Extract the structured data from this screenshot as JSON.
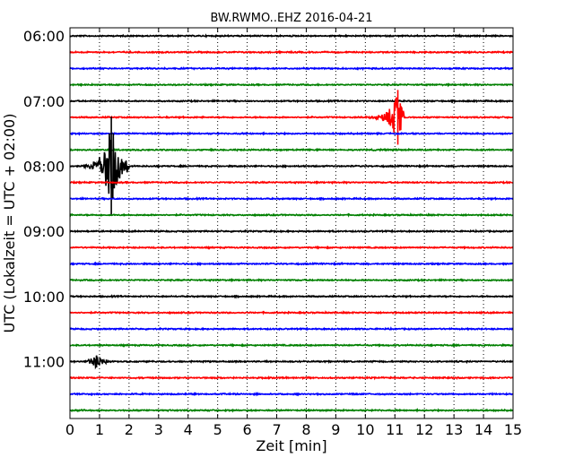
{
  "chart_data": {
    "type": "line",
    "title": "BW.RWMO..EHZ 2016-04-21",
    "xlabel": "Zeit  [min]",
    "ylabel": "UTC (Lokalzeit = UTC + 02:00)",
    "xlim": [
      0,
      15
    ],
    "x_ticks": [
      "0",
      "1",
      "2",
      "3",
      "4",
      "5",
      "6",
      "7",
      "8",
      "9",
      "10",
      "11",
      "12",
      "13",
      "14",
      "15"
    ],
    "y_tick_labels": [
      "06:00",
      "07:00",
      "08:00",
      "09:00",
      "10:00",
      "11:00"
    ],
    "trace_interval_min": 15,
    "trace_count": 24,
    "trace_colors": [
      "#000000",
      "#ff0000",
      "#0000ff",
      "#008000"
    ],
    "grid": "vertical dotted",
    "events": [
      {
        "trace_start": "07:15",
        "x_start": 9.8,
        "x_end": 11.3,
        "peak_x": 11.1,
        "amplitude": 1.6
      },
      {
        "trace_start": "08:00",
        "x_start": 0.4,
        "x_end": 2.0,
        "peak_x": 1.4,
        "amplitude": 2.9
      },
      {
        "trace_start": "11:00",
        "x_start": 0.6,
        "x_end": 1.3,
        "peak_x": 0.9,
        "amplitude": 0.35
      }
    ]
  }
}
